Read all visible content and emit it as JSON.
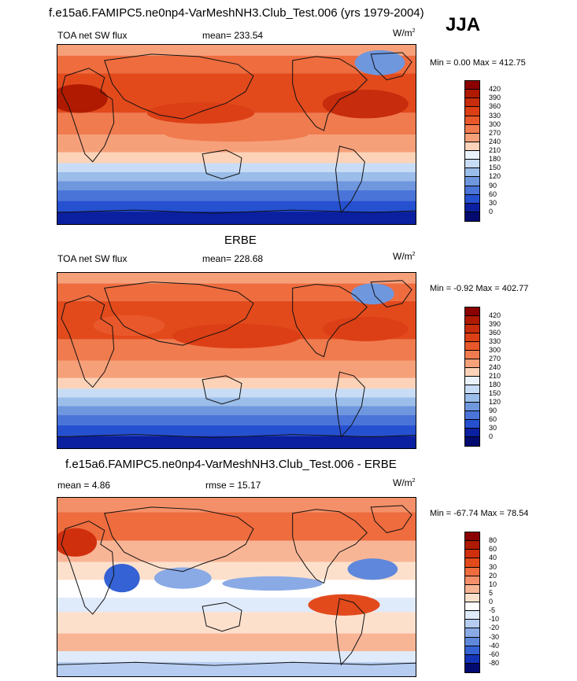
{
  "title": "f.e15a6.FAMIPC5.ne0np4-VarMeshNH3.Club_Test.006 (yrs 1979-2004)",
  "season": "JJA",
  "panels": [
    {
      "header": "",
      "left_label": "TOA net SW flux",
      "center_label": "mean= 233.54",
      "units": "W/m",
      "units_exp": "2",
      "minmax": "Min =   0.00 Max = 412.75",
      "levels": [
        "420",
        "390",
        "360",
        "330",
        "300",
        "270",
        "240",
        "210",
        "180",
        "150",
        "120",
        "90",
        "60",
        "30",
        "0"
      ],
      "colors": [
        "#8b0000",
        "#b01a00",
        "#c72c0c",
        "#dc3f16",
        "#e9582a",
        "#f07b4e",
        "#f6a07a",
        "#fcd3b8",
        "#eaf2fb",
        "#c8dcf5",
        "#9bbde9",
        "#6f97de",
        "#4a74d8",
        "#2550d0",
        "#0a20a0",
        "#020a70"
      ]
    },
    {
      "header": "ERBE",
      "left_label": "TOA net SW flux",
      "center_label": "mean= 228.68",
      "units": "W/m",
      "units_exp": "2",
      "minmax": "Min =  -0.92 Max = 402.77",
      "levels": [
        "420",
        "390",
        "360",
        "330",
        "300",
        "270",
        "240",
        "210",
        "180",
        "150",
        "120",
        "90",
        "60",
        "30",
        "0"
      ],
      "colors": [
        "#8b0000",
        "#b01a00",
        "#c72c0c",
        "#dc3f16",
        "#e9582a",
        "#f07b4e",
        "#f6a07a",
        "#fcd3b8",
        "#eaf2fb",
        "#c8dcf5",
        "#9bbde9",
        "#6f97de",
        "#4a74d8",
        "#2550d0",
        "#0a20a0",
        "#020a70"
      ]
    },
    {
      "header": "f.e15a6.FAMIPC5.ne0np4-VarMeshNH3.Club_Test.006 - ERBE",
      "left_label": "mean =   4.86",
      "center_label": "rmse =  15.17",
      "units": "W/m",
      "units_exp": "2",
      "minmax": "Min = -67.74 Max =  78.54",
      "levels": [
        "80",
        "60",
        "40",
        "30",
        "20",
        "10",
        "5",
        "0",
        "-5",
        "-10",
        "-20",
        "-30",
        "-40",
        "-60",
        "-80"
      ],
      "colors": [
        "#8b0000",
        "#b01a00",
        "#d02f0e",
        "#e24a1c",
        "#ee6c3e",
        "#f49069",
        "#f8b596",
        "#fde0cc",
        "#ffffff",
        "#dfeafa",
        "#b6cdf1",
        "#8aaae6",
        "#5f88dc",
        "#3562d4",
        "#1232b8",
        "#020a70"
      ]
    }
  ]
}
